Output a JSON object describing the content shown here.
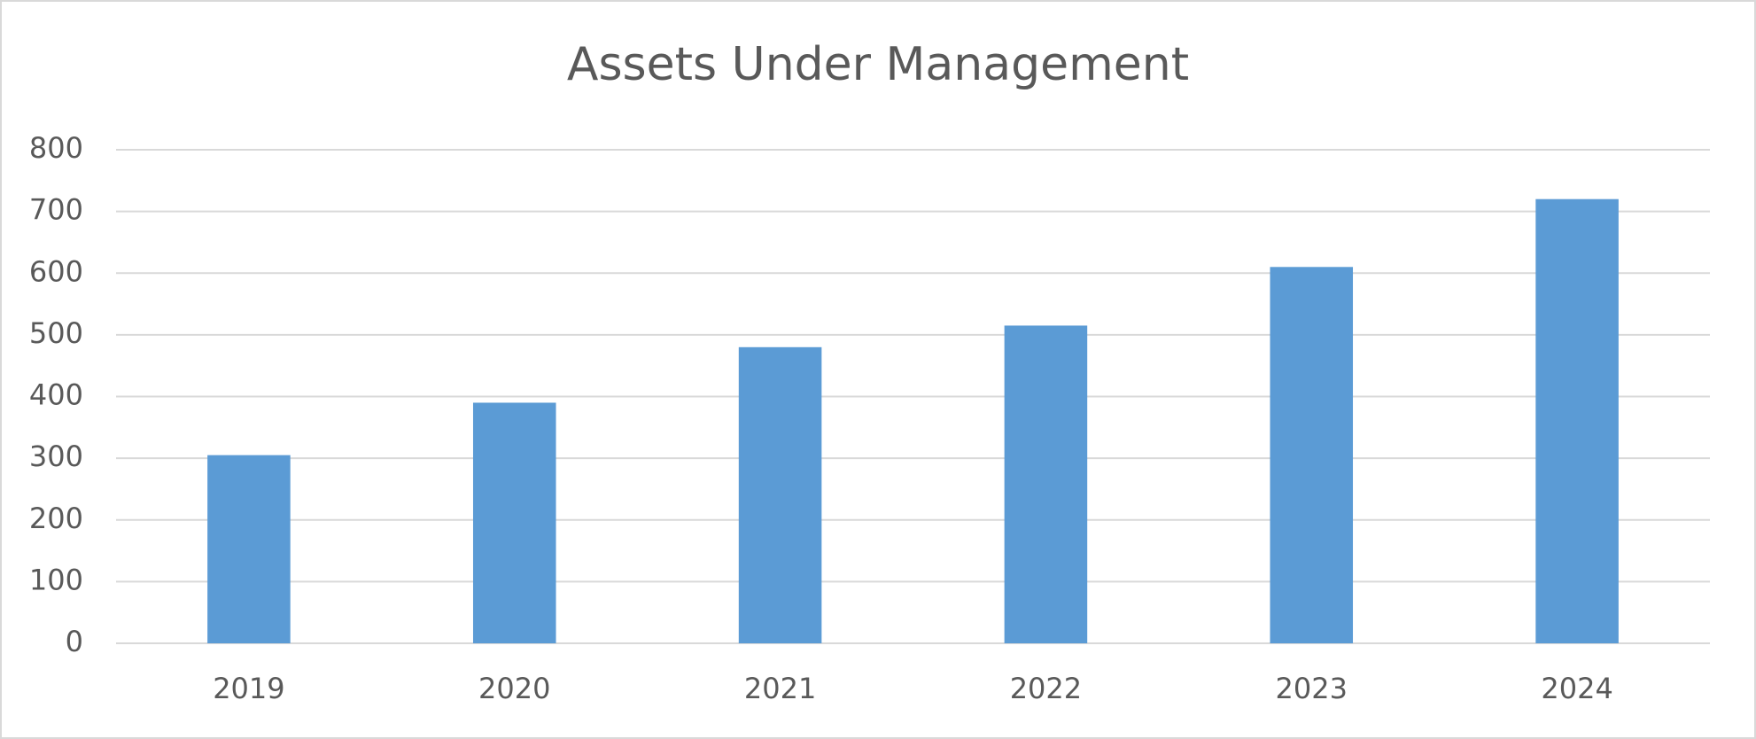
{
  "chart_data": {
    "type": "bar",
    "title": "Assets Under Management",
    "categories": [
      "2019",
      "2020",
      "2021",
      "2022",
      "2023",
      "2024"
    ],
    "values": [
      305,
      390,
      480,
      515,
      610,
      720
    ],
    "color": "#5b9bd5",
    "ylim": [
      0,
      800
    ],
    "yticks": [
      0,
      100,
      200,
      300,
      400,
      500,
      600,
      700,
      800
    ],
    "grid": true
  }
}
